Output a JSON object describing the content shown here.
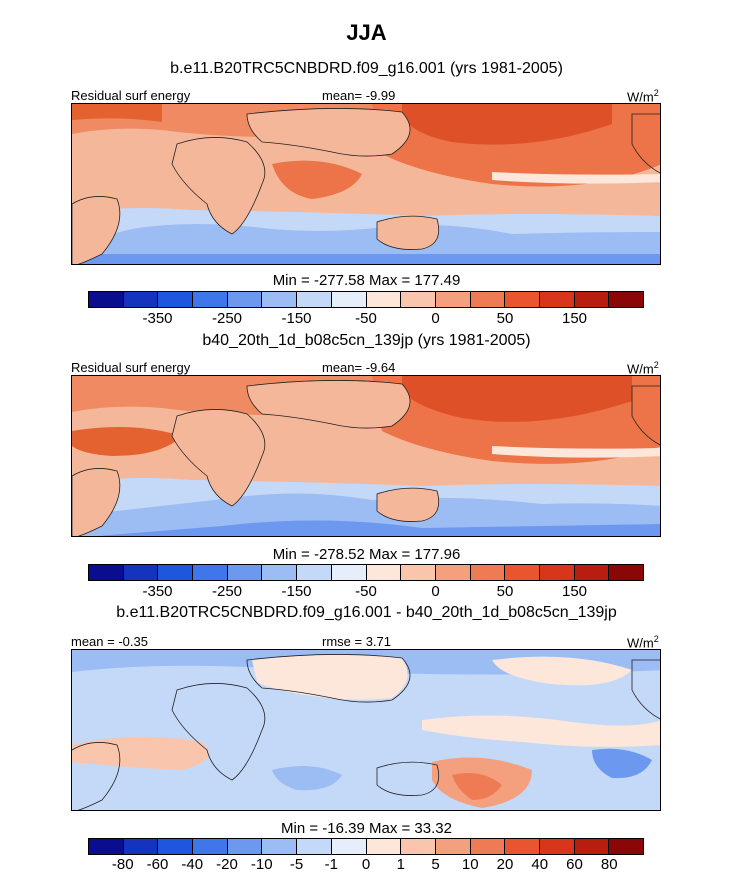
{
  "title": "JJA",
  "colors": {
    "scale": [
      "#0a0d8e",
      "#1434be",
      "#1e56de",
      "#3f76ea",
      "#6d98ef",
      "#9cbcf4",
      "#c4d8f8",
      "#e6eefc",
      "#fde6da",
      "#f9c6ad",
      "#f4a07f",
      "#ef7b55",
      "#e8552f",
      "#d8361a",
      "#b81e10",
      "#8b0707"
    ]
  },
  "chart_data": [
    {
      "type": "heatmap",
      "subtitle": "b.e11.B20TRC5CNBDRD.f09_g16.001 (yrs 1981-2005)",
      "left_label": "Residual surf energy",
      "center_label": "mean=  -9.99",
      "units": "W/m",
      "units_sup": "2",
      "min": -277.58,
      "max": 177.49,
      "minmax_text": "Min = -277.58 Max = 177.49",
      "colorbar_ticks": [
        "-350",
        "-250",
        "-150",
        "-50",
        "0",
        "50",
        "150"
      ]
    },
    {
      "type": "heatmap",
      "subtitle": "b40_20th_1d_b08c5cn_139jp (yrs 1981-2005)",
      "left_label": "Residual surf energy",
      "center_label": "mean=  -9.64",
      "units": "W/m",
      "units_sup": "2",
      "min": -278.52,
      "max": 177.96,
      "minmax_text": "Min = -278.52 Max = 177.96",
      "colorbar_ticks": [
        "-350",
        "-250",
        "-150",
        "-50",
        "0",
        "50",
        "150"
      ]
    },
    {
      "type": "heatmap",
      "subtitle": "b.e11.B20TRC5CNBDRD.f09_g16.001 - b40_20th_1d_b08c5cn_139jp",
      "left_label": "mean =  -0.35",
      "center_label": "rmse =   3.71",
      "units": "W/m",
      "units_sup": "2",
      "min": -16.39,
      "max": 33.32,
      "minmax_text": "Min = -16.39 Max =  33.32",
      "colorbar_ticks": [
        "-80",
        "-60",
        "-40",
        "-20",
        "-10",
        "-5",
        "-1",
        "0",
        "1",
        "5",
        "10",
        "20",
        "40",
        "60",
        "80"
      ]
    }
  ]
}
